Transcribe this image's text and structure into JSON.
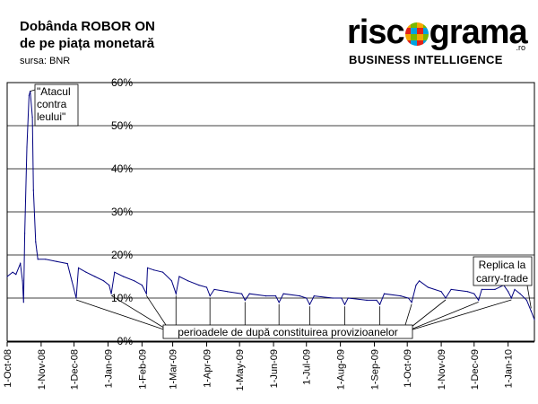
{
  "header": {
    "title_line1": "Dobânda ROBOR ON",
    "title_line2": "de pe piața monetară",
    "source": "sursa: BNR"
  },
  "logo": {
    "word_left": "risc",
    "word_right": "grama",
    "domain": ".ro",
    "tagline": "BUSINESS INTELLIGENCE",
    "icon": "ring-logo-icon"
  },
  "chart_data": {
    "type": "line",
    "title": "Dobânda ROBOR ON de pe piața monetară",
    "xlabel": "",
    "ylabel": "",
    "ylim": [
      0,
      60
    ],
    "xlim": [
      "2008-10-01",
      "2010-01-25"
    ],
    "y_ticks": [
      "0%",
      "10%",
      "20%",
      "30%",
      "40%",
      "50%",
      "60%"
    ],
    "y_tick_values": [
      0,
      10,
      20,
      30,
      40,
      50,
      60
    ],
    "x_ticks": [
      "1-Oct-08",
      "1-Nov-08",
      "1-Dec-08",
      "1-Jan-09",
      "1-Feb-09",
      "1-Mar-09",
      "1-Apr-09",
      "1-May-09",
      "1-Jun-09",
      "1-Jul-09",
      "1-Aug-09",
      "1-Sep-09",
      "1-Oct-09",
      "1-Nov-09",
      "1-Dec-09",
      "1-Jan-10"
    ],
    "grid": true,
    "legend": "none",
    "series": [
      {
        "color": "#000080",
        "points": [
          [
            "2008-10-01",
            15
          ],
          [
            "2008-10-06",
            16
          ],
          [
            "2008-10-09",
            15.5
          ],
          [
            "2008-10-13",
            18
          ],
          [
            "2008-10-15",
            14
          ],
          [
            "2008-10-16",
            9
          ],
          [
            "2008-10-17",
            25
          ],
          [
            "2008-10-19",
            45
          ],
          [
            "2008-10-21",
            57
          ],
          [
            "2008-10-22",
            58
          ],
          [
            "2008-10-24",
            52
          ],
          [
            "2008-10-25",
            35
          ],
          [
            "2008-10-27",
            23
          ],
          [
            "2008-10-28",
            21
          ],
          [
            "2008-10-29",
            19
          ],
          [
            "2008-11-05",
            19
          ],
          [
            "2008-11-15",
            18.5
          ],
          [
            "2008-11-25",
            18
          ],
          [
            "2008-11-29",
            14
          ],
          [
            "2008-12-03",
            10
          ],
          [
            "2008-12-05",
            17
          ],
          [
            "2008-12-12",
            16
          ],
          [
            "2008-12-20",
            15
          ],
          [
            "2008-12-28",
            14
          ],
          [
            "2009-01-02",
            13
          ],
          [
            "2009-01-04",
            11
          ],
          [
            "2009-01-07",
            16
          ],
          [
            "2009-01-15",
            15
          ],
          [
            "2009-01-25",
            14
          ],
          [
            "2009-02-01",
            13
          ],
          [
            "2009-02-05",
            11
          ],
          [
            "2009-02-06",
            17
          ],
          [
            "2009-02-12",
            16.5
          ],
          [
            "2009-02-20",
            16
          ],
          [
            "2009-02-28",
            14
          ],
          [
            "2009-03-04",
            11
          ],
          [
            "2009-03-07",
            15
          ],
          [
            "2009-03-15",
            14
          ],
          [
            "2009-03-25",
            13
          ],
          [
            "2009-04-01",
            12.5
          ],
          [
            "2009-04-04",
            10.5
          ],
          [
            "2009-04-08",
            12
          ],
          [
            "2009-04-20",
            11.5
          ],
          [
            "2009-05-03",
            11
          ],
          [
            "2009-05-06",
            9.5
          ],
          [
            "2009-05-10",
            11
          ],
          [
            "2009-05-25",
            10.5
          ],
          [
            "2009-06-03",
            10.5
          ],
          [
            "2009-06-06",
            9
          ],
          [
            "2009-06-10",
            11
          ],
          [
            "2009-06-25",
            10.5
          ],
          [
            "2009-07-01",
            10
          ],
          [
            "2009-07-04",
            8.5
          ],
          [
            "2009-07-08",
            10.5
          ],
          [
            "2009-07-25",
            10
          ],
          [
            "2009-08-02",
            10
          ],
          [
            "2009-08-05",
            8.5
          ],
          [
            "2009-08-08",
            10
          ],
          [
            "2009-08-25",
            9.5
          ],
          [
            "2009-09-03",
            9.5
          ],
          [
            "2009-09-06",
            8.5
          ],
          [
            "2009-09-10",
            11
          ],
          [
            "2009-09-25",
            10.5
          ],
          [
            "2009-10-02",
            10
          ],
          [
            "2009-10-05",
            9
          ],
          [
            "2009-10-09",
            13
          ],
          [
            "2009-10-12",
            14
          ],
          [
            "2009-10-20",
            12.5
          ],
          [
            "2009-11-01",
            11.5
          ],
          [
            "2009-11-05",
            10
          ],
          [
            "2009-11-10",
            12
          ],
          [
            "2009-11-25",
            11.5
          ],
          [
            "2009-12-01",
            11
          ],
          [
            "2009-12-05",
            9.5
          ],
          [
            "2009-12-08",
            12
          ],
          [
            "2009-12-20",
            12
          ],
          [
            "2009-12-28",
            13
          ],
          [
            "2010-01-01",
            11.5
          ],
          [
            "2010-01-04",
            10
          ],
          [
            "2010-01-07",
            12
          ],
          [
            "2010-01-12",
            11
          ],
          [
            "2010-01-18",
            9.5
          ],
          [
            "2010-01-22",
            7
          ],
          [
            "2010-01-25",
            5
          ]
        ]
      }
    ],
    "annotations": [
      {
        "text_lines": [
          "\"Atacul",
          "contra",
          "leului\""
        ],
        "date": "2008-10-22",
        "value": 58
      },
      {
        "text_lines": [
          "Replica la",
          "carry-trade"
        ],
        "date": "2010-01-22",
        "value": 7
      },
      {
        "text_lines": [
          "perioadele de după constituirea provizioanelor"
        ],
        "pointers": [
          [
            "2008-12-03",
            10
          ],
          [
            "2009-01-04",
            11
          ],
          [
            "2009-02-05",
            11
          ],
          [
            "2009-03-04",
            11
          ],
          [
            "2009-04-04",
            10.5
          ],
          [
            "2009-05-06",
            9.5
          ],
          [
            "2009-06-06",
            9
          ],
          [
            "2009-07-04",
            8.5
          ],
          [
            "2009-08-05",
            8.5
          ],
          [
            "2009-09-06",
            8.5
          ],
          [
            "2009-10-05",
            9
          ],
          [
            "2009-11-05",
            10
          ],
          [
            "2009-12-05",
            9.5
          ],
          [
            "2010-01-04",
            10
          ]
        ]
      }
    ]
  }
}
